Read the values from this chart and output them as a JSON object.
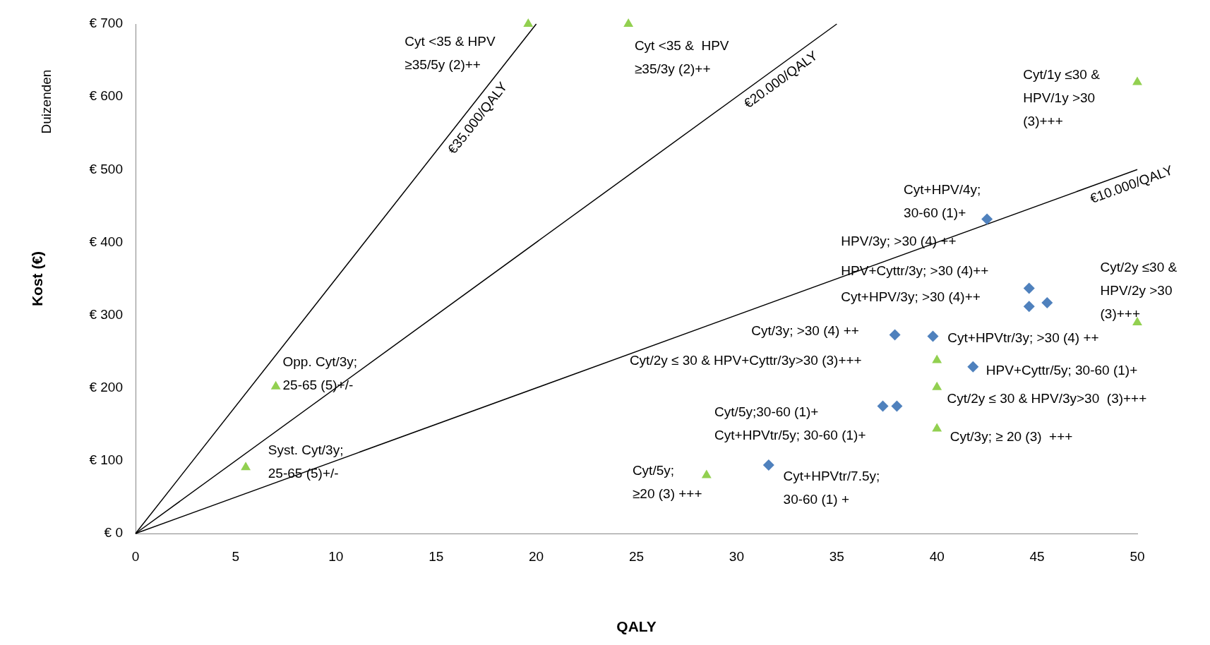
{
  "chart_data": {
    "type": "scatter",
    "xlabel": "QALY",
    "ylabel": "Kost (€)",
    "xlim": [
      0,
      50
    ],
    "xticks": [
      0,
      5,
      10,
      15,
      20,
      25,
      30,
      35,
      40,
      45,
      50
    ],
    "ylim": [
      0,
      700
    ],
    "yticks": [
      {
        "value": 0,
        "label": "€ 0"
      },
      {
        "value": 100,
        "label": "€ 100"
      },
      {
        "value": 200,
        "label": "€ 200"
      },
      {
        "value": 300,
        "label": "€ 300"
      },
      {
        "value": 400,
        "label": "€ 400"
      },
      {
        "value": 500,
        "label": "€ 500"
      },
      {
        "value": 600,
        "label": "€ 600"
      },
      {
        "value": 700,
        "label": "€ 700"
      }
    ],
    "grid": false,
    "legend": false,
    "series": [
      {
        "marker": "triangle",
        "color": "#92d050",
        "x": [
          19.6,
          24.6,
          50,
          50,
          40,
          40,
          40,
          28.5,
          7,
          5.5
        ],
        "values": [
          700,
          700,
          620,
          290,
          238,
          201,
          144,
          80,
          202,
          91
        ]
      },
      {
        "marker": "diamond",
        "color": "#4f81bd",
        "x": [
          42.5,
          44.6,
          45.5,
          44.6,
          37.9,
          39.8,
          41.8,
          37.3,
          38,
          31.6
        ],
        "values": [
          432,
          337,
          317,
          312,
          273,
          271,
          229,
          175,
          175,
          94
        ]
      },
      {
        "type": "line",
        "name": "€35.000/QALY",
        "color": "#000000",
        "marker": "none",
        "x": [
          0,
          20
        ],
        "values": [
          0,
          700
        ]
      },
      {
        "type": "line",
        "name": "€20.000/QALY",
        "color": "#000000",
        "marker": "none",
        "x": [
          0,
          35
        ],
        "values": [
          0,
          700
        ]
      },
      {
        "type": "line",
        "name": "€10.000/QALY",
        "color": "#000000",
        "marker": "none",
        "x": [
          0,
          50
        ],
        "values": [
          0,
          500
        ]
      }
    ],
    "annotations": [
      "Duizenden",
      {
        "text": "Cyt <35 & HPV\n≥35/5y (2)++",
        "x": 19.6,
        "y": 700
      },
      {
        "text": "Cyt <35 &  HPV\n≥35/3y (2)++",
        "x": 24.6,
        "y": 700
      },
      {
        "text": "Cyt/1y ≤30 &\nHPV/1y >30\n(3)+++",
        "x": 50,
        "y": 620
      },
      {
        "text": "Cyt/2y ≤30 &\nHPV/2y >30\n(3)+++",
        "x": 50,
        "y": 290
      },
      {
        "text": "Cyt/2y ≤ 30 & HPV/3y>30  (3)+++",
        "x": 40,
        "y": 201
      },
      {
        "text": "Cyt/3y; ≥ 20 (3)  +++",
        "x": 40,
        "y": 144
      },
      {
        "text": "Cyt/5y;\n≥20 (3) +++",
        "x": 28.5,
        "y": 80
      },
      {
        "text": "Opp. Cyt/3y;\n25-65 (5)+/-",
        "x": 7,
        "y": 202
      },
      {
        "text": "Syst. Cyt/3y;\n25-65 (5)+/-",
        "x": 5.5,
        "y": 91
      },
      {
        "text": "Cyt+HPV/4y;\n30-60 (1)+",
        "x": 42.5,
        "y": 432
      },
      {
        "text": "Cyt/3y; >30 (4) ++",
        "x": 37.9,
        "y": 273
      },
      {
        "text": "Cyt+HPVtr/3y; >30 (4) ++",
        "x": 39.8,
        "y": 271
      },
      {
        "text": "HPV+Cyttr/5y; 30-60 (1)+",
        "x": 41.8,
        "y": 229
      },
      {
        "text": "Cyt+HPVtr/7.5y;\n30-60 (1) +",
        "x": 31.6,
        "y": 94
      },
      "Cyt/2y ≤ 30 & HPV+Cyttr/3y>30 (3)+++",
      "HPV/3y; >30 (4) ++",
      "HPV+Cyttr/3y; >30 (4)++",
      "Cyt+HPV/3y; >30 (4)++",
      "Cyt/5y;30-60 (1)+",
      "Cyt+HPVtr/5y; 30-60 (1)+"
    ]
  }
}
